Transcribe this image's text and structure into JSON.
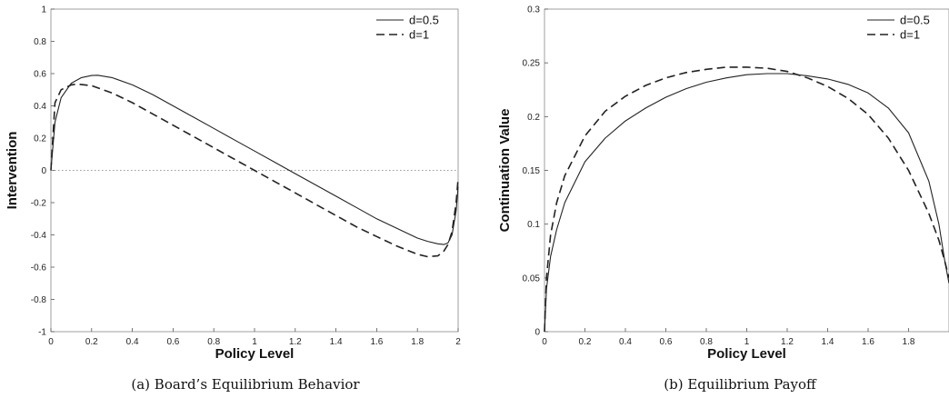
{
  "chart_data": [
    {
      "type": "line",
      "caption": "(a) Board’s Equilibrium Behavior",
      "xlabel": "Policy Level",
      "ylabel": "Intervention",
      "xlim": [
        0,
        2
      ],
      "ylim": [
        -1,
        1
      ],
      "xticks": [
        "0",
        "0.2",
        "0.4",
        "0.6",
        "0.8",
        "1",
        "1.2",
        "1.4",
        "1.6",
        "1.8",
        "2"
      ],
      "yticks": [
        "-1",
        "-0.8",
        "-0.6",
        "-0.4",
        "-0.2",
        "0",
        "0.2",
        "0.4",
        "0.6",
        "0.8",
        "1"
      ],
      "grid": false,
      "legend_position": "top-right",
      "reference_line": {
        "y": 0,
        "style": "dotted"
      },
      "series": [
        {
          "name": "d=0.5",
          "style": "solid",
          "x": [
            0,
            0.02,
            0.05,
            0.1,
            0.15,
            0.2,
            0.23,
            0.3,
            0.4,
            0.5,
            0.6,
            0.7,
            0.8,
            0.9,
            1.0,
            1.1,
            1.2,
            1.3,
            1.4,
            1.5,
            1.6,
            1.7,
            1.8,
            1.85,
            1.9,
            1.93,
            1.95,
            1.97,
            1.99,
            2.0
          ],
          "y": [
            0.0,
            0.3,
            0.45,
            0.54,
            0.575,
            0.588,
            0.59,
            0.575,
            0.53,
            0.47,
            0.4,
            0.33,
            0.26,
            0.19,
            0.12,
            0.05,
            -0.02,
            -0.09,
            -0.16,
            -0.23,
            -0.3,
            -0.36,
            -0.42,
            -0.44,
            -0.455,
            -0.46,
            -0.45,
            -0.4,
            -0.25,
            -0.1
          ]
        },
        {
          "name": "d=1",
          "style": "dashed",
          "x": [
            0,
            0.02,
            0.05,
            0.1,
            0.13,
            0.2,
            0.3,
            0.4,
            0.5,
            0.6,
            0.7,
            0.8,
            0.9,
            1.0,
            1.1,
            1.2,
            1.3,
            1.4,
            1.5,
            1.6,
            1.7,
            1.8,
            1.85,
            1.9,
            1.93,
            1.95,
            1.97,
            1.99,
            2.0
          ],
          "y": [
            0.0,
            0.42,
            0.5,
            0.53,
            0.535,
            0.525,
            0.48,
            0.42,
            0.35,
            0.28,
            0.21,
            0.14,
            0.07,
            0.0,
            -0.07,
            -0.14,
            -0.21,
            -0.28,
            -0.35,
            -0.41,
            -0.47,
            -0.52,
            -0.535,
            -0.53,
            -0.5,
            -0.46,
            -0.38,
            -0.2,
            -0.05
          ]
        }
      ]
    },
    {
      "type": "line",
      "caption": "(b) Equilibrium Payoff",
      "xlabel": "Policy Level",
      "ylabel": "Continuation Value",
      "xlim": [
        0,
        2
      ],
      "ylim": [
        0,
        0.3
      ],
      "xticks": [
        "0",
        "0.2",
        "0.4",
        "0.6",
        "0.8",
        "1",
        "1.2",
        "1.4",
        "1.6",
        "1.8"
      ],
      "yticks": [
        "0",
        "0.05",
        "0.1",
        "0.15",
        "0.2",
        "0.25",
        "0.3"
      ],
      "grid": false,
      "legend_position": "top-right",
      "series": [
        {
          "name": "d=0.5",
          "style": "solid",
          "x": [
            0,
            0.01,
            0.03,
            0.06,
            0.1,
            0.2,
            0.3,
            0.4,
            0.5,
            0.6,
            0.7,
            0.8,
            0.9,
            1.0,
            1.1,
            1.2,
            1.3,
            1.4,
            1.5,
            1.6,
            1.7,
            1.8,
            1.9,
            1.95,
            1.98,
            2.0
          ],
          "y": [
            0,
            0.04,
            0.07,
            0.095,
            0.12,
            0.158,
            0.18,
            0.196,
            0.208,
            0.218,
            0.226,
            0.232,
            0.236,
            0.239,
            0.24,
            0.24,
            0.238,
            0.235,
            0.23,
            0.222,
            0.208,
            0.185,
            0.14,
            0.1,
            0.065,
            0.045
          ]
        },
        {
          "name": "d=1",
          "style": "dashed",
          "x": [
            0,
            0.01,
            0.03,
            0.06,
            0.1,
            0.2,
            0.3,
            0.4,
            0.5,
            0.6,
            0.7,
            0.8,
            0.9,
            1.0,
            1.1,
            1.2,
            1.3,
            1.4,
            1.5,
            1.6,
            1.7,
            1.8,
            1.9,
            1.95,
            1.98,
            2.0
          ],
          "y": [
            0,
            0.05,
            0.09,
            0.12,
            0.145,
            0.182,
            0.205,
            0.219,
            0.229,
            0.236,
            0.241,
            0.244,
            0.246,
            0.246,
            0.245,
            0.242,
            0.236,
            0.228,
            0.217,
            0.202,
            0.18,
            0.15,
            0.11,
            0.085,
            0.065,
            0.05
          ]
        }
      ]
    }
  ]
}
